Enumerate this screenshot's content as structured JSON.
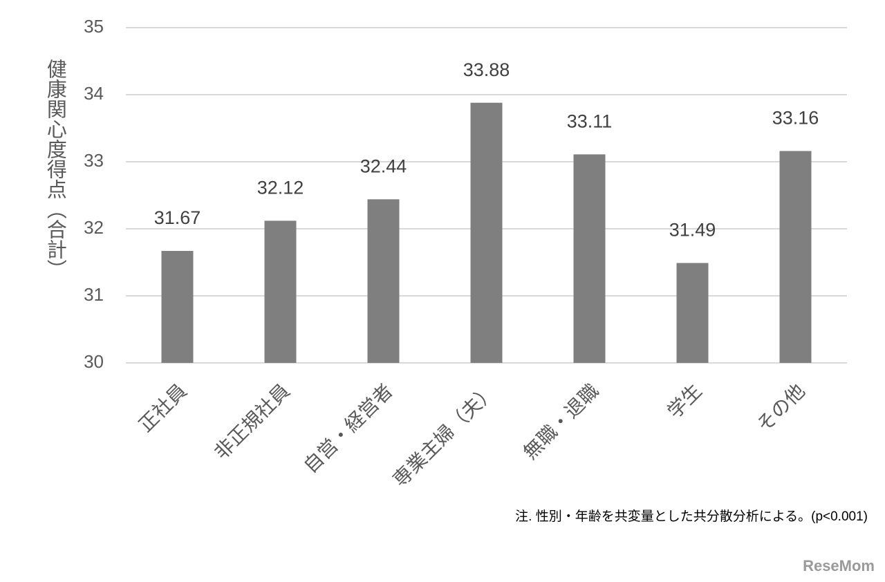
{
  "chart_data": {
    "type": "bar",
    "y_label": "健康関心度得点（合計）",
    "categories": [
      "正社員",
      "非正規社員",
      "自営・経営者",
      "専業主婦（夫）",
      "無職・退職",
      "学生",
      "その他"
    ],
    "values": [
      31.67,
      32.12,
      32.44,
      33.88,
      33.11,
      31.49,
      33.16
    ],
    "color": "#7f7f7f",
    "ylim": [
      30,
      35
    ],
    "yticks": [
      30,
      31,
      32,
      33,
      34,
      35
    ],
    "grid": true,
    "note": "注. 性別・年齢を共変量とした共分散分析による。(p<0.001)",
    "watermark": "ReseMom"
  }
}
